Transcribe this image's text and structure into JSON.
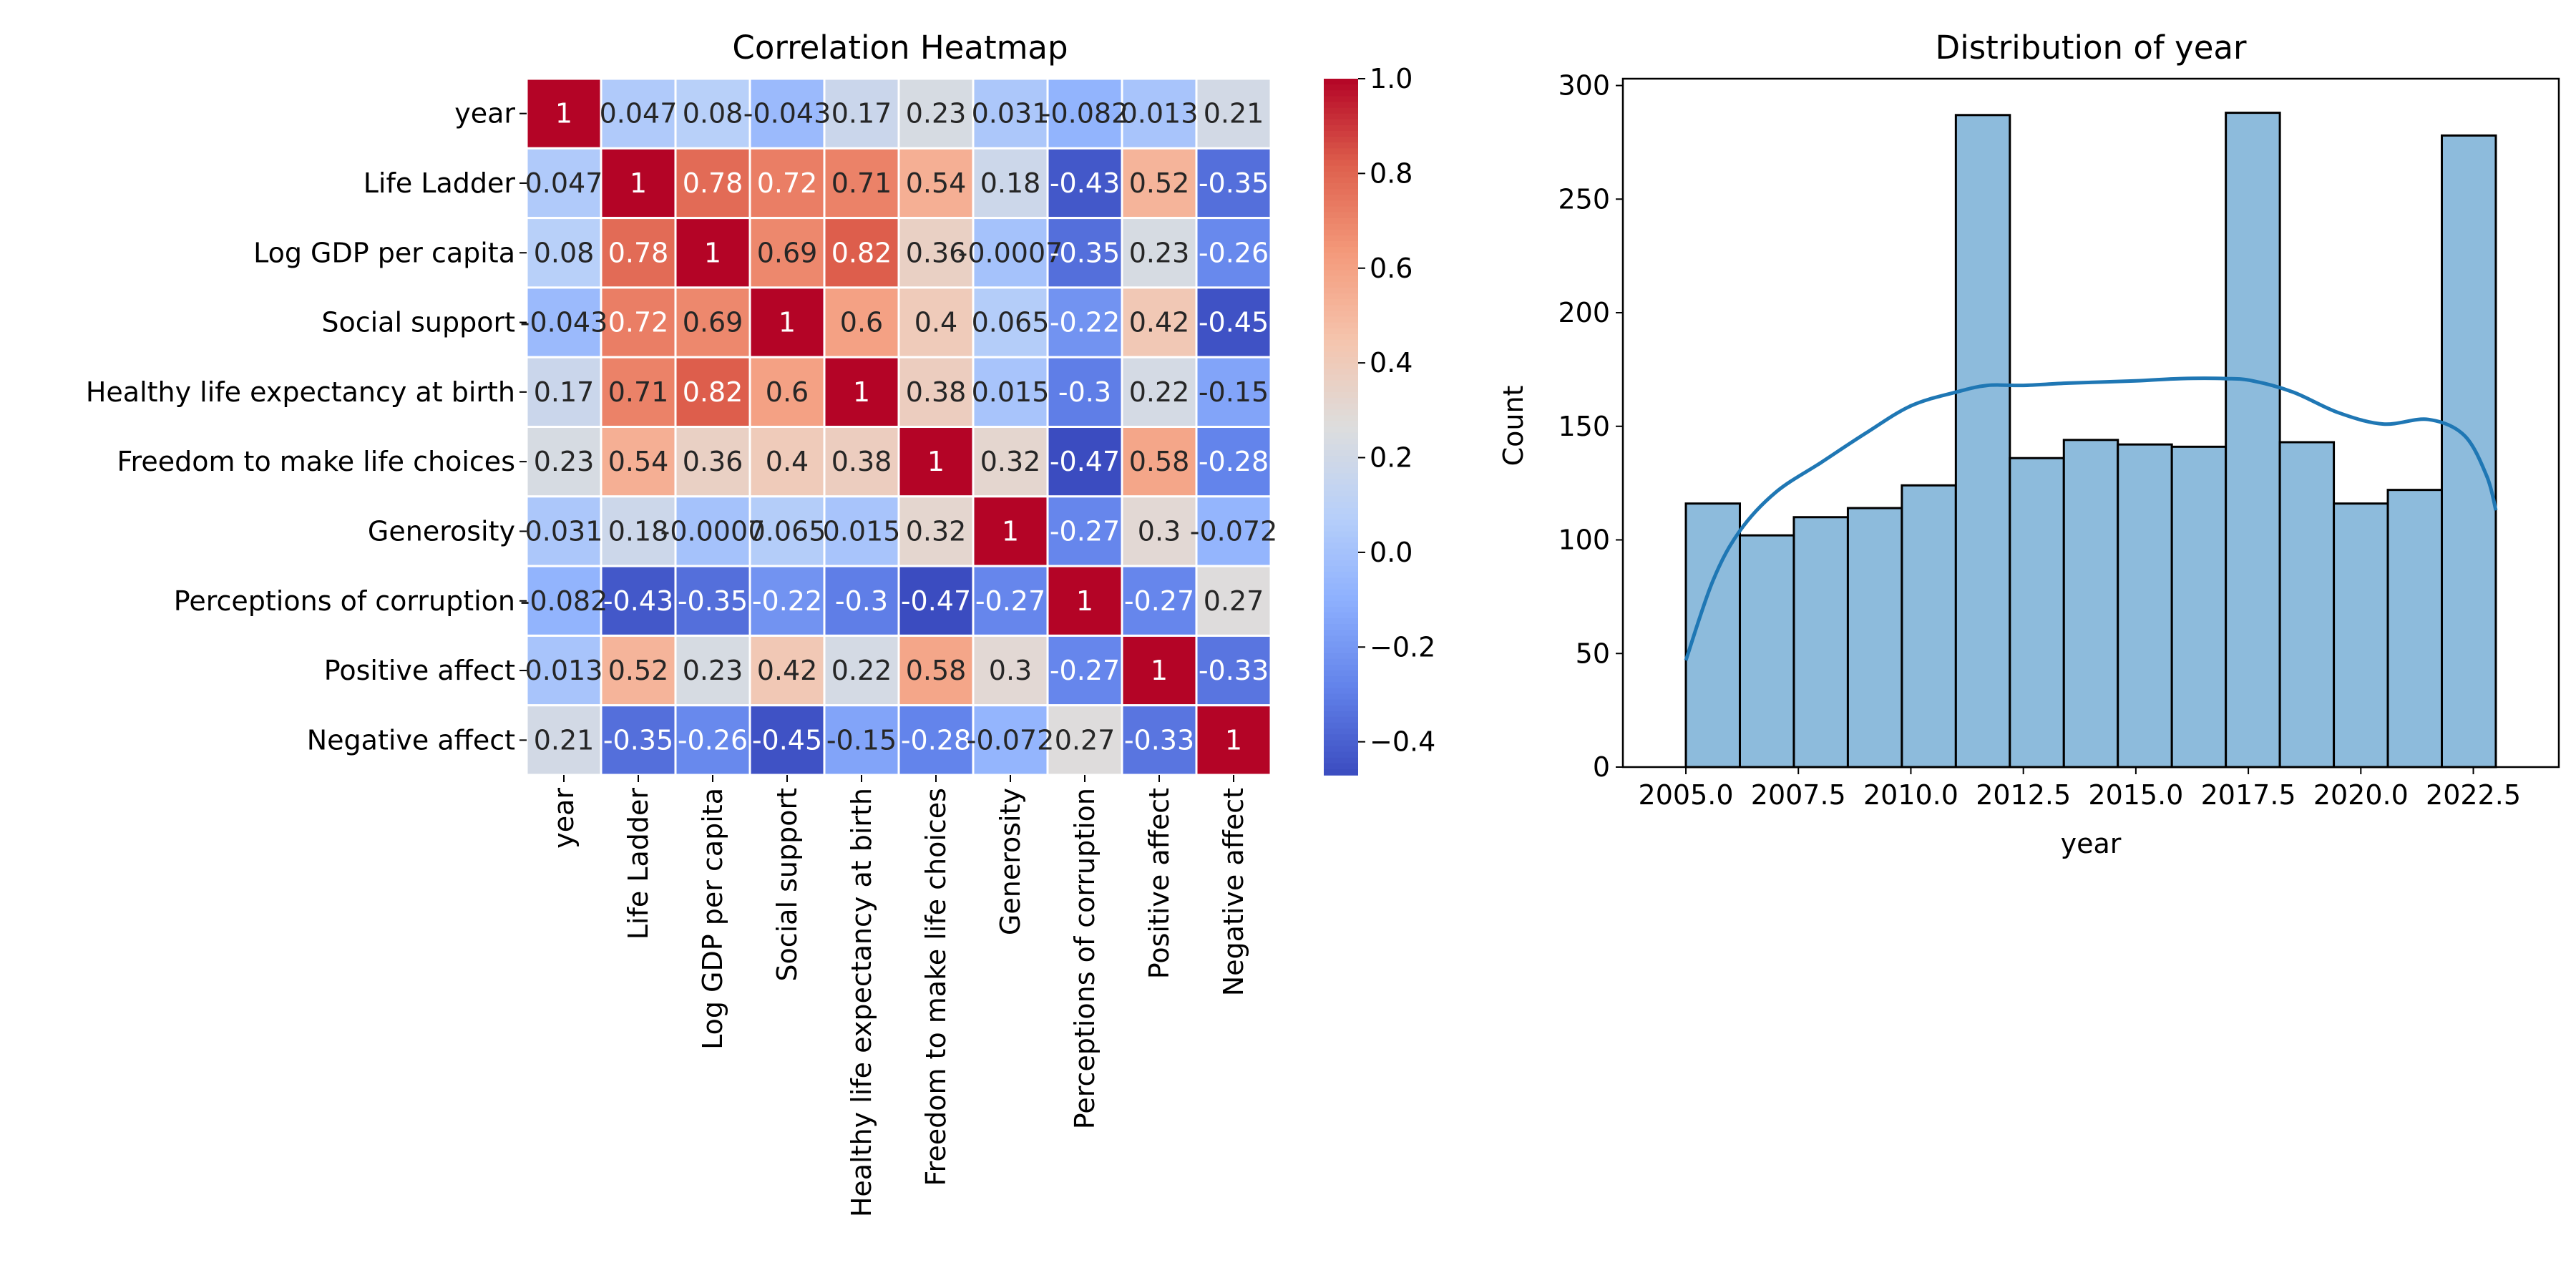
{
  "chart_data": [
    {
      "type": "heatmap",
      "title": "Correlation Heatmap",
      "variables": [
        "year",
        "Life Ladder",
        "Log GDP per capita",
        "Social support",
        "Healthy life expectancy at birth",
        "Freedom to make life choices",
        "Generosity",
        "Perceptions of corruption",
        "Positive affect",
        "Negative affect"
      ],
      "matrix": [
        [
          1,
          0.047,
          0.08,
          -0.043,
          0.17,
          0.23,
          0.031,
          -0.082,
          0.013,
          0.21
        ],
        [
          0.047,
          1,
          0.78,
          0.72,
          0.71,
          0.54,
          0.18,
          -0.43,
          0.52,
          -0.35
        ],
        [
          0.08,
          0.78,
          1,
          0.69,
          0.82,
          0.36,
          -0.0007,
          -0.35,
          0.23,
          -0.26
        ],
        [
          -0.043,
          0.72,
          0.69,
          1,
          0.6,
          0.4,
          0.065,
          -0.22,
          0.42,
          -0.45
        ],
        [
          0.17,
          0.71,
          0.82,
          0.6,
          1,
          0.38,
          0.015,
          -0.3,
          0.22,
          -0.15
        ],
        [
          0.23,
          0.54,
          0.36,
          0.4,
          0.38,
          1,
          0.32,
          -0.47,
          0.58,
          -0.28
        ],
        [
          0.031,
          0.18,
          -0.0007,
          0.065,
          0.015,
          0.32,
          1,
          -0.27,
          0.3,
          -0.072
        ],
        [
          -0.082,
          -0.43,
          -0.35,
          -0.22,
          -0.3,
          -0.47,
          -0.27,
          1,
          -0.27,
          0.27
        ],
        [
          0.013,
          0.52,
          0.23,
          0.42,
          0.22,
          0.58,
          0.3,
          -0.27,
          1,
          -0.33
        ],
        [
          0.21,
          -0.35,
          -0.26,
          -0.45,
          -0.15,
          -0.28,
          -0.072,
          0.27,
          -0.33,
          1
        ]
      ],
      "annotations": [
        [
          "1",
          "0.047",
          "0.08",
          "-0.043",
          "0.17",
          "0.23",
          "0.031",
          "-0.082",
          "0.013",
          "0.21"
        ],
        [
          "0.047",
          "1",
          "0.78",
          "0.72",
          "0.71",
          "0.54",
          "0.18",
          "-0.43",
          "0.52",
          "-0.35"
        ],
        [
          "0.08",
          "0.78",
          "1",
          "0.69",
          "0.82",
          "0.36",
          "-0.0007",
          "-0.35",
          "0.23",
          "-0.26"
        ],
        [
          "-0.043",
          "0.72",
          "0.69",
          "1",
          "0.6",
          "0.4",
          "0.065",
          "-0.22",
          "0.42",
          "-0.45"
        ],
        [
          "0.17",
          "0.71",
          "0.82",
          "0.6",
          "1",
          "0.38",
          "0.015",
          "-0.3",
          "0.22",
          "-0.15"
        ],
        [
          "0.23",
          "0.54",
          "0.36",
          "0.4",
          "0.38",
          "1",
          "0.32",
          "-0.47",
          "0.58",
          "-0.28"
        ],
        [
          "0.031",
          "0.18",
          "-0.0007",
          "0.065",
          "0.015",
          "0.32",
          "1",
          "-0.27",
          "0.3",
          "-0.072"
        ],
        [
          "-0.082",
          "-0.43",
          "-0.35",
          "-0.22",
          "-0.3",
          "-0.47",
          "-0.27",
          "1",
          "-0.27",
          "0.27"
        ],
        [
          "0.013",
          "0.52",
          "0.23",
          "0.42",
          "0.22",
          "0.58",
          "0.3",
          "-0.27",
          "1",
          "-0.33"
        ],
        [
          "0.21",
          "-0.35",
          "-0.26",
          "-0.45",
          "-0.15",
          "-0.28",
          "-0.072",
          "0.27",
          "-0.33",
          "1"
        ]
      ],
      "colormap": "coolwarm",
      "vmin": -0.47,
      "vmax": 1,
      "colorbar_ticks": [
        1.0,
        0.8,
        0.6,
        0.4,
        0.2,
        0.0,
        -0.2,
        -0.4
      ],
      "colorbar_tick_labels": [
        "1.0",
        "0.8",
        "0.6",
        "0.4",
        "0.2",
        "0.0",
        "−0.2",
        "−0.4"
      ],
      "gridlines": "white"
    },
    {
      "type": "histogram",
      "title": "Distribution of year",
      "xlabel": "year",
      "ylabel": "Count",
      "bin_edges": [
        2005.0,
        2006.2,
        2007.4,
        2008.6,
        2009.8,
        2011.0,
        2012.2,
        2013.4,
        2014.6,
        2015.8,
        2017.0,
        2018.2,
        2019.4,
        2020.6,
        2021.8,
        2023.0
      ],
      "counts": [
        116,
        102,
        110,
        114,
        124,
        287,
        136,
        144,
        142,
        141,
        288,
        143,
        116,
        122,
        278
      ],
      "kde": {
        "x": [
          2005.0,
          2005.6,
          2006.2,
          2007.0,
          2008.0,
          2009.0,
          2010.0,
          2011.0,
          2011.7,
          2012.5,
          2013.5,
          2015.0,
          2016.0,
          2017.0,
          2017.6,
          2018.5,
          2019.5,
          2020.5,
          2021.5,
          2022.3,
          2022.8,
          2023.0
        ],
        "y": [
          47,
          82,
          104,
          121,
          134,
          147,
          159,
          165,
          168,
          168,
          169,
          170,
          171,
          171,
          170,
          165,
          156,
          151,
          153,
          146,
          128,
          113
        ]
      },
      "xlim": [
        2003.6,
        2024.4
      ],
      "ylim": [
        0,
        303
      ],
      "xticks": [
        2005.0,
        2007.5,
        2010.0,
        2012.5,
        2015.0,
        2017.5,
        2020.0,
        2022.5
      ],
      "xtick_labels": [
        "2005.0",
        "2007.5",
        "2010.0",
        "2012.5",
        "2015.0",
        "2017.5",
        "2020.0",
        "2022.5"
      ],
      "yticks": [
        0,
        50,
        100,
        150,
        200,
        250,
        300
      ],
      "ytick_labels": [
        "0",
        "50",
        "100",
        "150",
        "200",
        "250",
        "300"
      ],
      "bar_color": "#8dbbdc",
      "line_color": "#1f77b4"
    }
  ]
}
